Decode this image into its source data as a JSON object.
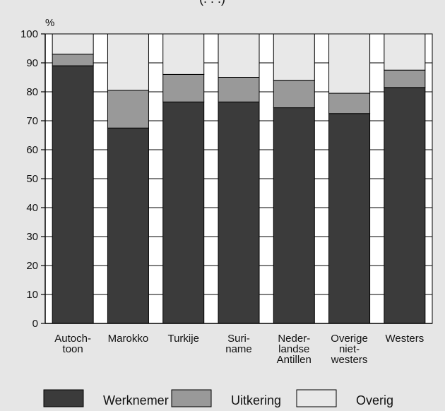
{
  "chart_data": {
    "type": "bar",
    "stacked": true,
    "title": "",
    "title_fragment": "(. . .)",
    "unit_label": "%",
    "xlabel": "",
    "ylabel": "%",
    "ylim": [
      0,
      100
    ],
    "yticks": [
      "0",
      "10",
      "20",
      "30",
      "40",
      "50",
      "60",
      "70",
      "80",
      "90",
      "100"
    ],
    "grid": true,
    "legend_position": "bottom",
    "categories": [
      [
        "Autoch-",
        "toon"
      ],
      [
        "Marokko"
      ],
      [
        "Turkije"
      ],
      [
        "Suri-",
        "name"
      ],
      [
        "Neder-",
        "landse",
        "Antillen"
      ],
      [
        "Overige",
        "niet-",
        "westers"
      ],
      [
        "Westers"
      ]
    ],
    "series": [
      {
        "name": "Werknemer",
        "color": "#3b3b3b",
        "values": [
          89,
          67.5,
          76.5,
          76.5,
          74.5,
          72.5,
          81.5
        ]
      },
      {
        "name": "Uitkering",
        "color": "#999999",
        "values": [
          4,
          13,
          9.5,
          8.5,
          9.5,
          7,
          6
        ]
      },
      {
        "name": "Overig",
        "color": "#e8e8e8",
        "values": [
          7,
          19.5,
          14,
          15,
          16,
          20.5,
          12.5
        ]
      }
    ]
  }
}
